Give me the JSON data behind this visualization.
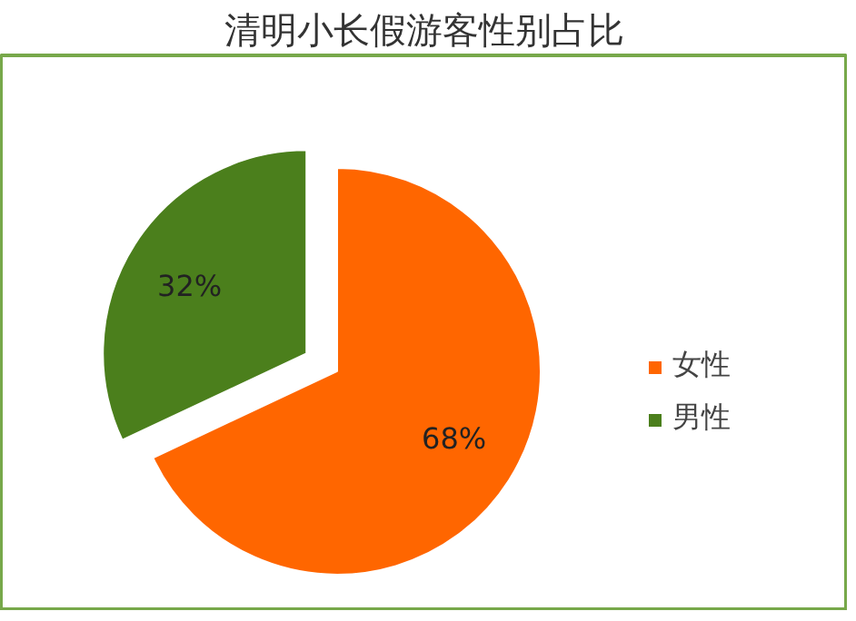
{
  "chart_data": {
    "type": "pie",
    "title": "清明小长假游客性别占比",
    "categories": [
      "女性",
      "男性"
    ],
    "values": [
      68,
      32
    ],
    "colors": [
      "#ff6600",
      "#4b7f1c"
    ],
    "value_labels": [
      "68%",
      "32%"
    ],
    "legend": "right"
  }
}
